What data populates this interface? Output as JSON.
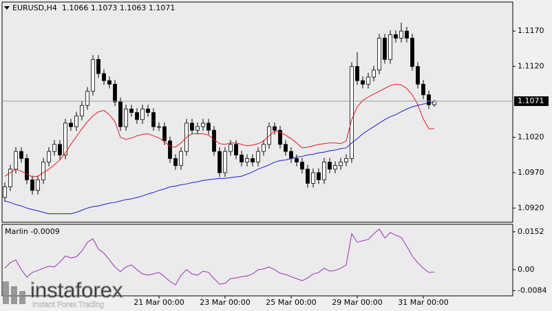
{
  "chart_data": [
    {
      "type": "candlestick",
      "title": "EURUSD,H4  1.1066 1.1073 1.1063 1.1071",
      "categories": [
        null,
        null,
        null,
        null,
        null,
        null,
        null,
        null,
        null,
        null,
        null,
        null,
        null,
        null,
        null,
        null,
        null,
        null,
        null,
        null,
        null,
        null,
        null,
        null,
        null,
        null,
        null,
        null,
        "21 Mar 00:00",
        null,
        null,
        null,
        null,
        null,
        null,
        null,
        null,
        null,
        null,
        null,
        "23 Mar 00:00",
        null,
        null,
        null,
        null,
        null,
        null,
        null,
        null,
        null,
        null,
        null,
        "25 Mar 00:00",
        null,
        null,
        null,
        null,
        null,
        null,
        null,
        null,
        null,
        null,
        null,
        "29 Mar 00:00",
        null,
        null,
        null,
        null,
        null,
        null,
        null,
        null,
        null,
        null,
        null,
        "31 Mar 00:00",
        null,
        null
      ],
      "open": [
        1.0935,
        1.095,
        1.0975,
        1.1,
        1.099,
        1.096,
        1.0945,
        1.096,
        1.0985,
        1.1,
        1.101,
        1.0995,
        1.104,
        1.1035,
        1.105,
        1.1065,
        1.1085,
        1.113,
        1.111,
        1.11,
        1.1095,
        1.107,
        1.1035,
        1.106,
        1.1055,
        1.1045,
        1.106,
        1.1055,
        1.1035,
        1.1035,
        1.1015,
        1.099,
        1.098,
        1.1,
        1.104,
        1.103,
        1.1035,
        1.104,
        1.103,
        1.1,
        1.097,
        1.1,
        1.101,
        1.0995,
        1.0985,
        1.099,
        1.0985,
        1.1,
        1.101,
        1.1035,
        1.103,
        1.101,
        1.1,
        1.099,
        1.0985,
        1.0975,
        1.0955,
        1.097,
        1.096,
        1.0985,
        1.0975,
        1.098,
        1.0985,
        1.099,
        1.112,
        1.11,
        1.1095,
        1.1105,
        1.1115,
        1.116,
        1.113,
        1.1165,
        1.116,
        1.117,
        1.116,
        1.112,
        1.1095,
        1.108,
        1.1066
      ],
      "high": [
        1.0956,
        1.0981,
        1.1006,
        1.1006,
        1.0996,
        1.0966,
        1.0966,
        1.0991,
        1.1006,
        1.1016,
        1.1016,
        1.1046,
        1.1046,
        1.1056,
        1.1071,
        1.1091,
        1.1136,
        1.1136,
        1.1116,
        1.1106,
        1.1101,
        1.1076,
        1.1066,
        1.1066,
        1.1061,
        1.1066,
        1.1066,
        1.1061,
        1.1041,
        1.1041,
        1.1021,
        1.0996,
        1.1006,
        1.1046,
        1.1046,
        1.1041,
        1.1046,
        1.1046,
        1.1036,
        1.1006,
        1.1006,
        1.1016,
        1.1016,
        1.1001,
        1.0996,
        1.0996,
        1.1006,
        1.1016,
        1.1041,
        1.1041,
        1.1036,
        1.1016,
        1.1006,
        1.0996,
        1.0991,
        1.0981,
        1.0976,
        1.0976,
        1.0991,
        1.0991,
        1.0986,
        1.0991,
        1.0996,
        1.1126,
        1.114,
        1.1106,
        1.1111,
        1.1121,
        1.1166,
        1.1166,
        1.1171,
        1.1171,
        1.1182,
        1.1176,
        1.1166,
        1.1126,
        1.1101,
        1.1086,
        1.1073
      ],
      "low": [
        1.0929,
        1.0944,
        1.0969,
        1.0984,
        1.0954,
        1.0939,
        1.0939,
        1.0954,
        1.0979,
        1.0994,
        1.0989,
        1.0989,
        1.1029,
        1.1029,
        1.1044,
        1.1059,
        1.1079,
        1.1104,
        1.1094,
        1.1089,
        1.1064,
        1.1029,
        1.1029,
        1.1049,
        1.1039,
        1.1039,
        1.1049,
        1.1029,
        1.1029,
        1.1009,
        1.0984,
        1.0974,
        1.0974,
        1.0994,
        1.1024,
        1.1024,
        1.1029,
        1.1024,
        1.0994,
        1.0964,
        1.0964,
        1.0994,
        1.0989,
        1.0979,
        1.0979,
        1.0979,
        1.0979,
        1.0994,
        1.1004,
        1.1024,
        1.1004,
        1.0994,
        1.0984,
        1.0979,
        1.0969,
        1.0949,
        1.0949,
        1.0954,
        1.0954,
        1.0969,
        1.0969,
        1.0974,
        1.0979,
        1.0984,
        1.1094,
        1.1089,
        1.1089,
        1.1099,
        1.1109,
        1.1124,
        1.1124,
        1.1154,
        1.1154,
        1.1154,
        1.1114,
        1.1089,
        1.1074,
        1.106,
        1.1063
      ],
      "close": [
        1.095,
        1.0975,
        1.1,
        1.099,
        1.096,
        1.0945,
        1.096,
        1.0985,
        1.1,
        1.101,
        1.0995,
        1.104,
        1.1035,
        1.105,
        1.1065,
        1.1085,
        1.113,
        1.111,
        1.11,
        1.1095,
        1.107,
        1.1035,
        1.106,
        1.1055,
        1.1045,
        1.106,
        1.1055,
        1.1035,
        1.1035,
        1.1015,
        1.099,
        1.098,
        1.1,
        1.104,
        1.103,
        1.1035,
        1.104,
        1.103,
        1.1,
        1.097,
        1.1,
        1.101,
        1.0995,
        1.0985,
        1.099,
        1.0985,
        1.1,
        1.101,
        1.1035,
        1.103,
        1.101,
        1.1,
        1.099,
        1.0985,
        1.0975,
        1.0955,
        1.097,
        1.096,
        1.0985,
        1.0975,
        1.098,
        1.0985,
        1.099,
        1.112,
        1.11,
        1.1095,
        1.1105,
        1.1115,
        1.116,
        1.113,
        1.1165,
        1.116,
        1.117,
        1.116,
        1.112,
        1.1095,
        1.108,
        1.1066,
        1.1071
      ],
      "series": [
        {
          "color": "#e8161b",
          "values": [
            1.0965,
            1.097,
            1.0975,
            1.0972,
            1.0968,
            1.0964,
            1.0965,
            1.097,
            1.0975,
            1.0981,
            1.0988,
            1.0998,
            1.101,
            1.1021,
            1.1032,
            1.1042,
            1.105,
            1.1056,
            1.1058,
            1.1052,
            1.1042,
            1.102,
            1.1017,
            1.1019,
            1.1022,
            1.1024,
            1.1025,
            1.1022,
            1.1019,
            1.1014,
            1.1007,
            1.1006,
            1.1012,
            1.102,
            1.1025,
            1.1025,
            1.1025,
            1.1023,
            1.1017,
            1.1011,
            1.101,
            1.1012,
            1.1012,
            1.101,
            1.1008,
            1.1009,
            1.1011,
            1.1015,
            1.1022,
            1.1029,
            1.1027,
            1.1023,
            1.1018,
            1.1012,
            1.1005,
            1.1006,
            1.1008,
            1.101,
            1.1011,
            1.1012,
            1.1012,
            1.1011,
            1.1015,
            1.1045,
            1.1063,
            1.1072,
            1.1077,
            1.1081,
            1.1085,
            1.1089,
            1.1093,
            1.1095,
            1.1094,
            1.1089,
            1.108,
            1.1066,
            1.1046,
            1.1032,
            1.1032
          ]
        },
        {
          "color": "#1a1ad0",
          "values": [
            1.093,
            1.0928,
            1.0925,
            1.0923,
            1.092,
            1.0918,
            1.0916,
            1.0914,
            1.0912,
            1.0912,
            1.0912,
            1.0912,
            1.0912,
            1.0914,
            1.0917,
            1.092,
            1.0922,
            1.0923,
            1.0925,
            1.0927,
            1.0928,
            1.093,
            1.0932,
            1.0933,
            1.0935,
            1.0937,
            1.094,
            1.0942,
            1.0945,
            1.0947,
            1.095,
            1.0951,
            1.0953,
            1.0954,
            1.0956,
            1.0957,
            1.0959,
            1.096,
            1.0961,
            1.0962,
            1.0962,
            1.0963,
            1.0964,
            1.0965,
            1.0968,
            1.0971,
            1.0975,
            1.0978,
            1.0981,
            1.0985,
            1.0987,
            1.0988,
            1.099,
            1.0992,
            1.0993,
            1.0995,
            1.0996,
            1.0998,
            1.0999,
            1.1001,
            1.1002,
            1.1004,
            1.1005,
            1.1012,
            1.1018,
            1.1025,
            1.103,
            1.1035,
            1.104,
            1.1045,
            1.1049,
            1.1052,
            1.1056,
            1.106,
            1.1063,
            1.1065,
            1.1067,
            1.1068,
            1.107
          ]
        }
      ],
      "up_color": "#ffffff",
      "down_color": "#000000",
      "ylim": [
        1.09,
        1.1211
      ],
      "yticks": [
        {
          "value": 1.092,
          "label": "1.0920"
        },
        {
          "value": 1.097,
          "label": "1.0970"
        },
        {
          "value": 1.102,
          "label": "1.1020"
        },
        {
          "value": 1.112,
          "label": "1.1120"
        },
        {
          "value": 1.117,
          "label": "1.1170"
        }
      ],
      "last_price": {
        "value": 1.1071,
        "label": "1.1071"
      },
      "grid": false
    },
    {
      "type": "line",
      "title": "Marlin -0.0009",
      "series": [
        {
          "color": "#9b2fc0",
          "values": [
            0.0006,
            0.0028,
            0.0039,
            0,
            -0.003,
            -0.0011,
            -0.0003,
            0.0006,
            0.0014,
            0.0011,
            0.003,
            0.0055,
            0.0047,
            0.0052,
            0.0075,
            0.011,
            0.0124,
            0.0083,
            0.0066,
            0.0039,
            0.0011,
            -0.0008,
            0.0011,
            0.0019,
            0,
            -0.0017,
            -0.0022,
            -0.0017,
            -0.0011,
            -0.0028,
            -0.0047,
            -0.0061,
            -0.0022,
            0,
            -0.0017,
            -0.0022,
            -0.0006,
            -0.0011,
            -0.0036,
            -0.0058,
            -0.0055,
            -0.0036,
            -0.0033,
            -0.0028,
            -0.0025,
            -0.0017,
            0,
            0.0003,
            0.0011,
            0,
            -0.0014,
            -0.0019,
            -0.0028,
            -0.0036,
            -0.0044,
            -0.0033,
            -0.0017,
            -0.0011,
            0.0006,
            -0.0006,
            -0.0003,
            0.0006,
            0.0019,
            0.0144,
            0.011,
            0.0116,
            0.0121,
            0.0144,
            0.0163,
            0.0127,
            0.0149,
            0.0138,
            0.013,
            0.0094,
            0.0055,
            0.0028,
            0.0006,
            -0.0011,
            -0.0009
          ]
        }
      ],
      "ylim": [
        -0.0105,
        0.0182
      ],
      "yticks": [
        -0.0084,
        {
          "value": 0,
          "label": "0.00"
        },
        0.0152
      ],
      "grid": false
    }
  ],
  "watermark": {
    "name": "instaforex",
    "tagline": "Instant Forex Trading"
  }
}
